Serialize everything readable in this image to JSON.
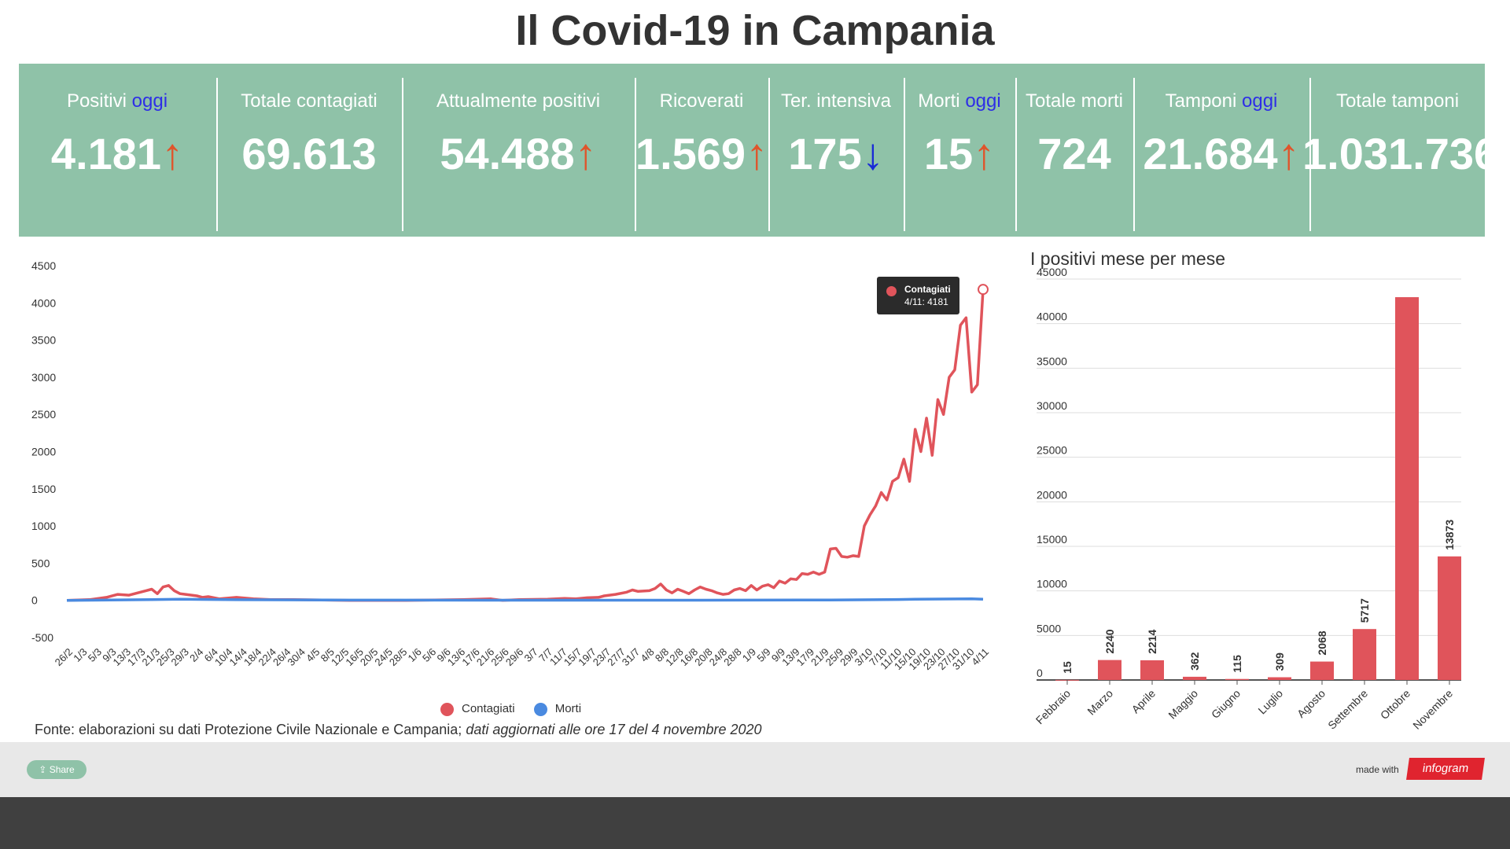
{
  "title": "Il Covid-19 in Campania",
  "stats": [
    {
      "label": "Positivi",
      "accent": "oggi",
      "value": "4.181",
      "arrow": "↑",
      "trend": "up"
    },
    {
      "label": "Totale contagiati",
      "accent": "",
      "value": "69.613",
      "arrow": "",
      "trend": ""
    },
    {
      "label": "Attualmente positivi",
      "accent": "",
      "value": "54.488",
      "arrow": "↑",
      "trend": "up"
    },
    {
      "label": "Ricoverati",
      "accent": "",
      "value": "1.569",
      "arrow": "↑",
      "trend": "up"
    },
    {
      "label": "Ter. intensiva",
      "accent": "",
      "value": "175",
      "arrow": "↓",
      "trend": "down"
    },
    {
      "label": "Morti",
      "accent": "oggi",
      "value": "15",
      "arrow": "↑",
      "trend": "up"
    },
    {
      "label": "Totale morti",
      "accent": "",
      "value": "724",
      "arrow": "",
      "trend": ""
    },
    {
      "label": "Tamponi",
      "accent": "oggi",
      "value": "21.684",
      "arrow": "↑",
      "trend": "up"
    },
    {
      "label": "Totale tamponi",
      "accent": "",
      "value": "1.031.736",
      "arrow": "",
      "trend": ""
    }
  ],
  "colors": {
    "header_bg": "#8fc2a8",
    "contagiati": "#e0545b",
    "morti": "#4a8ae0",
    "bar": "#e0545b",
    "arrow_up": "#e0542b",
    "arrow_down": "#1a2bd6",
    "accent_text": "#2e2ee6"
  },
  "chart_data": [
    {
      "type": "line",
      "title": "",
      "ylim": [
        -500,
        4500
      ],
      "yticks": [
        -500,
        0,
        500,
        1000,
        1500,
        2000,
        2500,
        3000,
        3500,
        4000,
        4500
      ],
      "x_tick_labels": [
        "26/2",
        "1/3",
        "5/3",
        "9/3",
        "13/3",
        "17/3",
        "21/3",
        "25/3",
        "29/3",
        "2/4",
        "6/4",
        "10/4",
        "14/4",
        "18/4",
        "22/4",
        "26/4",
        "30/4",
        "4/5",
        "8/5",
        "12/5",
        "16/5",
        "20/5",
        "24/5",
        "28/5",
        "1/6",
        "5/6",
        "9/6",
        "13/6",
        "17/6",
        "21/6",
        "25/6",
        "29/6",
        "3/7",
        "7/7",
        "11/7",
        "15/7",
        "19/7",
        "23/7",
        "27/7",
        "31/7",
        "4/8",
        "8/8",
        "12/8",
        "16/8",
        "20/8",
        "24/8",
        "28/8",
        "1/9",
        "5/9",
        "9/9",
        "13/9",
        "17/9",
        "21/9",
        "25/9",
        "29/9",
        "3/10",
        "7/10",
        "11/10",
        "15/10",
        "19/10",
        "23/10",
        "27/10",
        "31/10",
        "4/11"
      ],
      "x_day_start": 0,
      "legend": [
        "Contagiati",
        "Morti"
      ],
      "legend_position": "bottom",
      "series": [
        {
          "name": "Contagiati",
          "points": [
            [
              0,
              0
            ],
            [
              8,
              10
            ],
            [
              14,
              40
            ],
            [
              18,
              80
            ],
            [
              22,
              70
            ],
            [
              26,
              110
            ],
            [
              28,
              130
            ],
            [
              30,
              150
            ],
            [
              32,
              90
            ],
            [
              34,
              180
            ],
            [
              36,
              200
            ],
            [
              38,
              130
            ],
            [
              40,
              90
            ],
            [
              42,
              80
            ],
            [
              46,
              60
            ],
            [
              48,
              40
            ],
            [
              50,
              50
            ],
            [
              54,
              20
            ],
            [
              60,
              40
            ],
            [
              66,
              20
            ],
            [
              72,
              10
            ],
            [
              80,
              10
            ],
            [
              90,
              5
            ],
            [
              100,
              0
            ],
            [
              110,
              0
            ],
            [
              120,
              0
            ],
            [
              130,
              5
            ],
            [
              140,
              10
            ],
            [
              150,
              20
            ],
            [
              154,
              0
            ],
            [
              160,
              10
            ],
            [
              170,
              15
            ],
            [
              176,
              25
            ],
            [
              180,
              20
            ],
            [
              184,
              35
            ],
            [
              188,
              40
            ],
            [
              190,
              60
            ],
            [
              194,
              80
            ],
            [
              198,
              110
            ],
            [
              200,
              140
            ],
            [
              202,
              120
            ],
            [
              206,
              130
            ],
            [
              208,
              160
            ],
            [
              210,
              220
            ],
            [
              212,
              140
            ],
            [
              214,
              100
            ],
            [
              216,
              150
            ],
            [
              218,
              120
            ],
            [
              220,
              90
            ],
            [
              222,
              140
            ],
            [
              224,
              180
            ],
            [
              226,
              150
            ],
            [
              228,
              130
            ],
            [
              230,
              100
            ],
            [
              232,
              80
            ],
            [
              234,
              90
            ],
            [
              236,
              140
            ],
            [
              238,
              160
            ],
            [
              240,
              130
            ],
            [
              242,
              200
            ],
            [
              244,
              140
            ],
            [
              246,
              190
            ],
            [
              248,
              210
            ],
            [
              250,
              170
            ],
            [
              252,
              260
            ],
            [
              254,
              230
            ],
            [
              256,
              290
            ],
            [
              258,
              280
            ],
            [
              260,
              360
            ],
            [
              262,
              350
            ],
            [
              264,
              380
            ],
            [
              266,
              350
            ],
            [
              268,
              380
            ],
            [
              270,
              690
            ],
            [
              272,
              700
            ],
            [
              274,
              590
            ],
            [
              276,
              580
            ],
            [
              278,
              600
            ],
            [
              280,
              590
            ],
            [
              282,
              1000
            ],
            [
              284,
              1150
            ],
            [
              286,
              1270
            ],
            [
              288,
              1450
            ],
            [
              290,
              1350
            ],
            [
              292,
              1600
            ],
            [
              294,
              1650
            ],
            [
              296,
              1900
            ],
            [
              298,
              1600
            ],
            [
              300,
              2300
            ],
            [
              302,
              2000
            ],
            [
              304,
              2450
            ],
            [
              306,
              1950
            ],
            [
              308,
              2700
            ],
            [
              310,
              2500
            ],
            [
              312,
              3000
            ],
            [
              314,
              3100
            ],
            [
              316,
              3700
            ],
            [
              318,
              3800
            ],
            [
              320,
              2800
            ],
            [
              322,
              2900
            ],
            [
              324,
              4181
            ]
          ]
        },
        {
          "name": "Morti",
          "points": [
            [
              0,
              0
            ],
            [
              30,
              10
            ],
            [
              40,
              15
            ],
            [
              60,
              8
            ],
            [
              100,
              3
            ],
            [
              150,
              2
            ],
            [
              200,
              2
            ],
            [
              240,
              3
            ],
            [
              270,
              5
            ],
            [
              290,
              10
            ],
            [
              300,
              15
            ],
            [
              310,
              18
            ],
            [
              320,
              20
            ],
            [
              324,
              15
            ]
          ]
        }
      ],
      "tooltip": {
        "series": "Contagiati",
        "text": "4/11: 4181"
      }
    },
    {
      "type": "bar",
      "title": "I positivi mese per mese",
      "categories": [
        "Febbraio",
        "Marzo",
        "Aprile",
        "Maggio",
        "Giugno",
        "Luglio",
        "Agosto",
        "Settembre",
        "Ottobre",
        "Novembre"
      ],
      "values": [
        15,
        2240,
        2214,
        362,
        115,
        309,
        2068,
        5717,
        42968,
        13873
      ],
      "value_labels": [
        "15",
        "2240",
        "2214",
        "362",
        "115",
        "309",
        "2068",
        "5717",
        "",
        "13873"
      ],
      "ylim": [
        0,
        45000
      ],
      "yticks": [
        0,
        5000,
        10000,
        15000,
        20000,
        25000,
        30000,
        35000,
        40000,
        45000
      ]
    }
  ],
  "legend": {
    "items": [
      "Contagiati",
      "Morti"
    ]
  },
  "source": {
    "plain": "Fonte: elaborazioni su dati Protezione Civile Nazionale e Campania; ",
    "italic": "dati aggiornati alle ore 17 del 4 novembre 2020"
  },
  "footer": {
    "share_label": "Share",
    "made_with": "made with",
    "brand": "infogram"
  }
}
